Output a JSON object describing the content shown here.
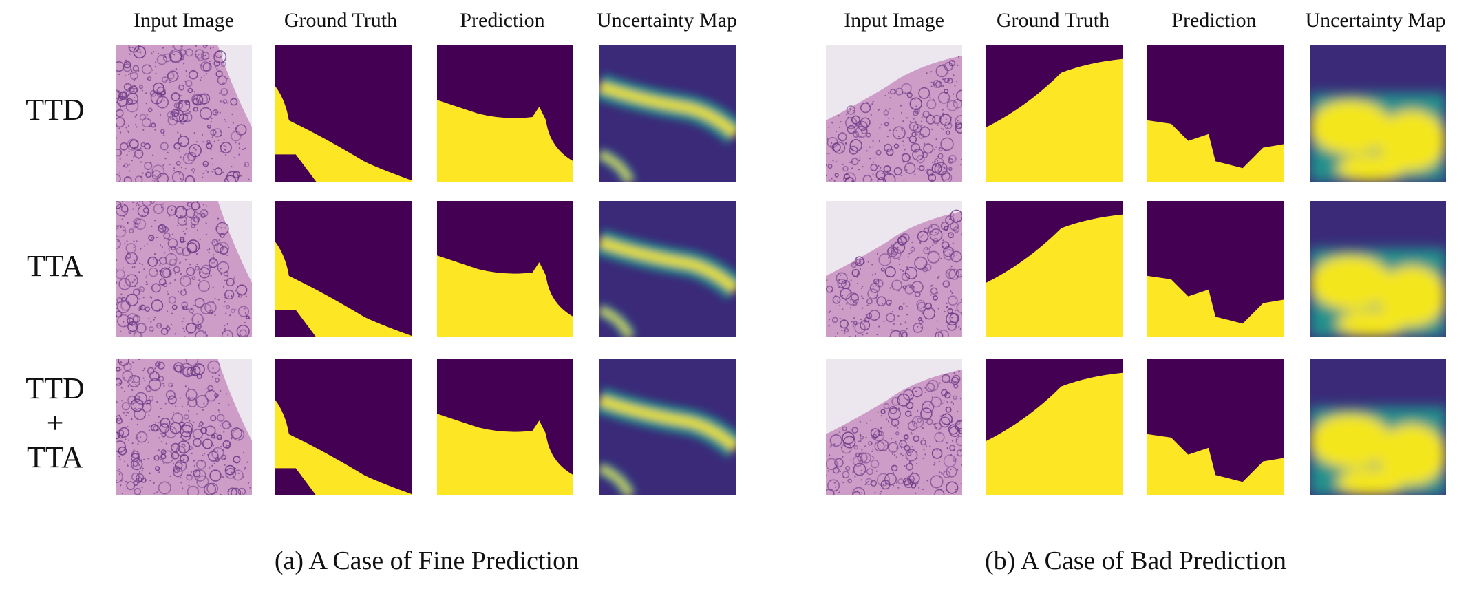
{
  "column_headers": [
    "Input Image",
    "Ground Truth",
    "Prediction",
    "Uncertainty Map"
  ],
  "row_labels": {
    "ttd": "TTD",
    "tta": "TTA",
    "combined_top": "TTD",
    "combined_plus": "+",
    "combined_bottom": "TTA"
  },
  "captions": {
    "left": "(a) A Case of Fine Prediction",
    "right": "(b) A Case of Bad Prediction"
  },
  "colors": {
    "mask_background": "#440154",
    "mask_foreground": "#fde725",
    "uncertainty_low": "#3b2a78",
    "uncertainty_mid": "#21918c",
    "uncertainty_high": "#f4e61e",
    "tissue_pink": "#c98fc0",
    "tissue_purple": "#6b3a86",
    "tissue_background": "#ece7ef"
  }
}
